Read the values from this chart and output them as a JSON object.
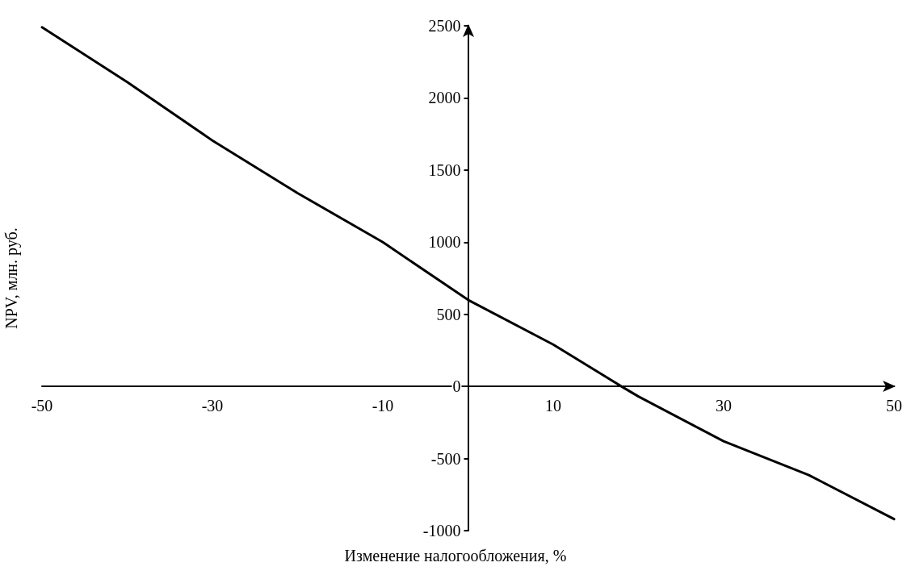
{
  "chart_data": {
    "type": "line",
    "xlabel": "Изменение налогообложения, %",
    "ylabel": "NPV, млн. руб.",
    "x": [
      -50,
      -40,
      -30,
      -20,
      -10,
      0,
      10,
      18,
      20,
      30,
      40,
      50
    ],
    "series": [
      {
        "color": "#000000",
        "values": [
          2490,
          2110,
          1705,
          1340,
          1000,
          600,
          290,
          0,
          -70,
          -380,
          -615,
          -920
        ]
      }
    ],
    "xlim": [
      -50,
      50
    ],
    "xticks": [
      -50,
      -30,
      -10,
      10,
      30,
      50
    ],
    "ylim": [
      -1000,
      2500
    ],
    "yticks": [
      -1000,
      -500,
      0,
      500,
      1000,
      1500,
      2000,
      2500
    ],
    "marker": "none",
    "line_style": "solid"
  }
}
